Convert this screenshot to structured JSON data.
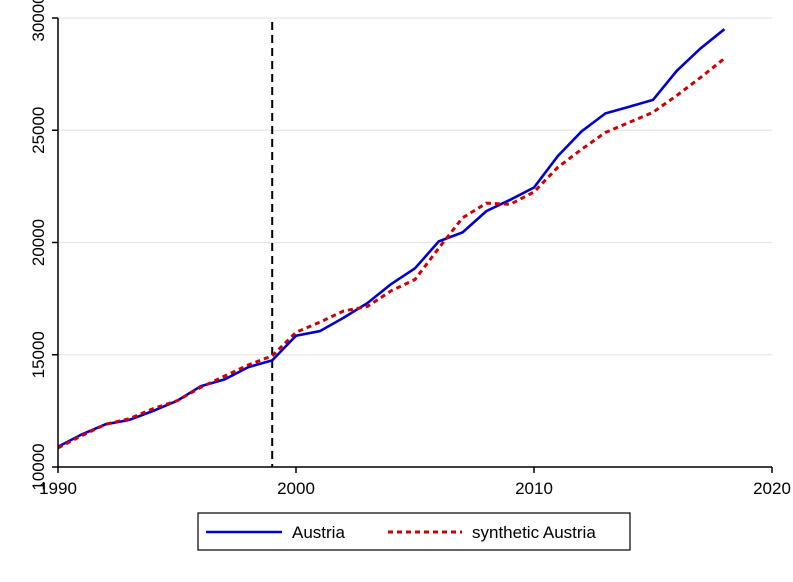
{
  "chart_data": {
    "type": "line",
    "title": "",
    "xlabel": "",
    "ylabel": "",
    "xlim": [
      1990,
      2020
    ],
    "ylim": [
      10000,
      30000
    ],
    "x_ticks": [
      1990,
      2000,
      2010,
      2020
    ],
    "y_ticks": [
      10000,
      15000,
      20000,
      25000,
      30000
    ],
    "grid": "horizontal",
    "treatment_year": 1999,
    "legend_position": "bottom",
    "colors": {
      "Austria": "#0000cc",
      "synthetic Austria": "#cc0000",
      "treatment_line": "#000000",
      "grid": "#e6e6e6"
    },
    "x": [
      1990,
      1991,
      1992,
      1993,
      1994,
      1995,
      1996,
      1997,
      1998,
      1999,
      2000,
      2001,
      2002,
      2003,
      2004,
      2005,
      2006,
      2007,
      2008,
      2009,
      2010,
      2011,
      2012,
      2013,
      2014,
      2015,
      2016,
      2017,
      2018
    ],
    "series": [
      {
        "name": "Austria",
        "style": "solid",
        "values": [
          10900,
          11450,
          11900,
          12100,
          12500,
          12950,
          13600,
          13900,
          14450,
          14750,
          15850,
          16050,
          16650,
          17300,
          18150,
          18850,
          20050,
          20450,
          21400,
          21900,
          22450,
          23850,
          24950,
          25750,
          26050,
          26350,
          27650,
          28650,
          29500
        ]
      },
      {
        "name": "synthetic Austria",
        "style": "dotted",
        "values": [
          10850,
          11400,
          11900,
          12150,
          12600,
          12950,
          13550,
          14050,
          14550,
          14950,
          16000,
          16450,
          16950,
          17150,
          17850,
          18350,
          19750,
          21100,
          21750,
          21700,
          22250,
          23350,
          24150,
          24900,
          25350,
          25800,
          26550,
          27350,
          28200
        ]
      }
    ]
  }
}
